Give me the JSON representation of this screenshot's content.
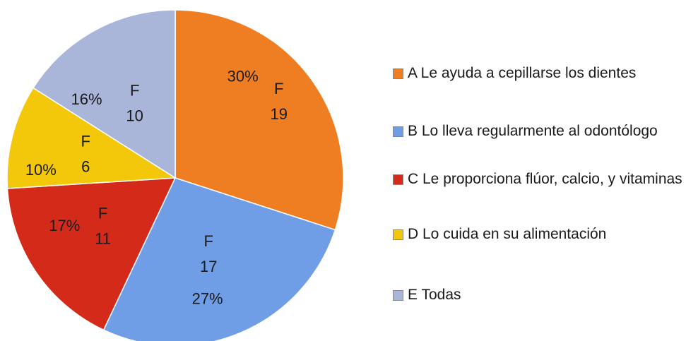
{
  "chart_data": {
    "type": "pie",
    "categories": [
      "A Le ayuda a cepillarse los dientes",
      "B Lo lleva regularmente al odontólogo",
      "C Le proporciona flúor, calcio, y vitaminas",
      "D Lo cuida en su alimentación",
      "E Todas"
    ],
    "values": [
      30,
      27,
      17,
      10,
      16
    ],
    "value_labels": [
      "30%",
      "27%",
      "17%",
      "10%",
      "16%"
    ],
    "frequency_label": "F",
    "frequencies": [
      19,
      17,
      11,
      6,
      10
    ],
    "colors": [
      "#ef7d22",
      "#6f9ee6",
      "#d42a1a",
      "#f3c80a",
      "#a9b5d9"
    ],
    "legend": "right"
  }
}
